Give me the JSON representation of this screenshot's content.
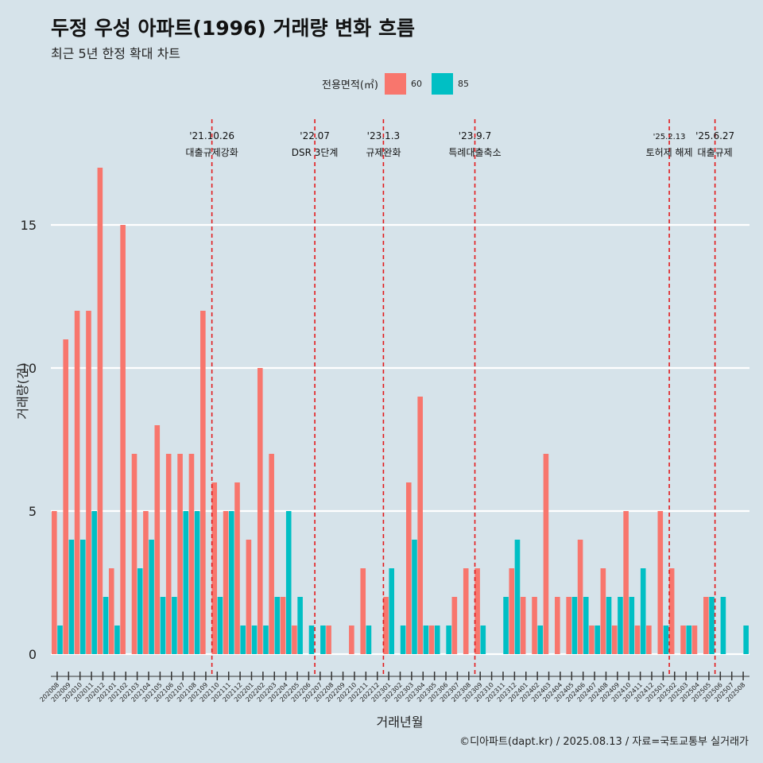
{
  "title": "두정 우성 아파트(1996) 거래량 변화 흐름",
  "subtitle": "최근 5년 한정 확대 차트",
  "caption": "©디아파트(dapt.kr) / 2025.08.13 / 자료=국토교통부 실거래가",
  "colors": {
    "background": "#d6e3ea",
    "grid": "#ffffff",
    "s60": "#f8766d",
    "s85": "#00bfc4",
    "event": "#e31a1c"
  },
  "chart_data": {
    "type": "bar",
    "title": "두정 우성 아파트(1996) 거래량 변화 흐름",
    "xlabel": "거래년월",
    "ylabel": "거래량(건)",
    "ylim": [
      -0.8,
      18
    ],
    "yticks": [
      0,
      5,
      10,
      15
    ],
    "legend_title": "전용면적(㎡)",
    "legend_position": "top",
    "categories": [
      "202008",
      "202009",
      "202010",
      "202011",
      "202012",
      "202101",
      "202102",
      "202103",
      "202104",
      "202105",
      "202106",
      "202107",
      "202108",
      "202109",
      "202110",
      "202111",
      "202112",
      "202201",
      "202202",
      "202203",
      "202204",
      "202205",
      "202206",
      "202207",
      "202208",
      "202209",
      "202210",
      "202211",
      "202212",
      "202301",
      "202302",
      "202303",
      "202304",
      "202305",
      "202306",
      "202307",
      "202308",
      "202309",
      "202310",
      "202311",
      "202312",
      "202401",
      "202402",
      "202403",
      "202404",
      "202405",
      "202406",
      "202407",
      "202408",
      "202409",
      "202410",
      "202411",
      "202412",
      "202501",
      "202502",
      "202503",
      "202504",
      "202505",
      "202506",
      "202507",
      "202508"
    ],
    "series": [
      {
        "name": "60",
        "values": [
          5,
          11,
          12,
          12,
          17,
          3,
          15,
          7,
          5,
          8,
          7,
          7,
          7,
          12,
          6,
          5,
          6,
          4,
          10,
          7,
          2,
          1,
          0,
          0,
          1,
          0,
          1,
          3,
          0,
          2,
          0,
          6,
          9,
          1,
          0,
          2,
          3,
          3,
          0,
          0,
          3,
          2,
          2,
          7,
          2,
          2,
          4,
          1,
          3,
          1,
          5,
          1,
          1,
          5,
          3,
          1,
          1,
          2,
          0,
          0,
          0
        ]
      },
      {
        "name": "85",
        "values": [
          1,
          4,
          4,
          5,
          2,
          1,
          0,
          3,
          4,
          2,
          2,
          5,
          5,
          0,
          2,
          5,
          1,
          1,
          1,
          2,
          5,
          2,
          1,
          1,
          0,
          0,
          0,
          1,
          0,
          3,
          1,
          4,
          1,
          1,
          1,
          0,
          0,
          1,
          0,
          2,
          4,
          0,
          1,
          0,
          0,
          2,
          2,
          1,
          2,
          2,
          2,
          3,
          0,
          1,
          0,
          1,
          0,
          2,
          2,
          0,
          1
        ]
      }
    ],
    "events": [
      {
        "date": "'21.10.26",
        "label": "대출규제강화",
        "x_index": 14.0
      },
      {
        "date": "'22.07",
        "label": "DSR 3단계",
        "x_index": 23.0
      },
      {
        "date": "'23.1.3",
        "label": "규제완화",
        "x_index": 29.0
      },
      {
        "date": "'23.9.7",
        "label": "특례대출축소",
        "x_index": 37.0
      },
      {
        "date": "'25.2.13",
        "label": "토허제 해제",
        "x_index": 54.0
      },
      {
        "date": "'25.6.27",
        "label": "대출규제",
        "x_index": 58.0
      }
    ]
  }
}
